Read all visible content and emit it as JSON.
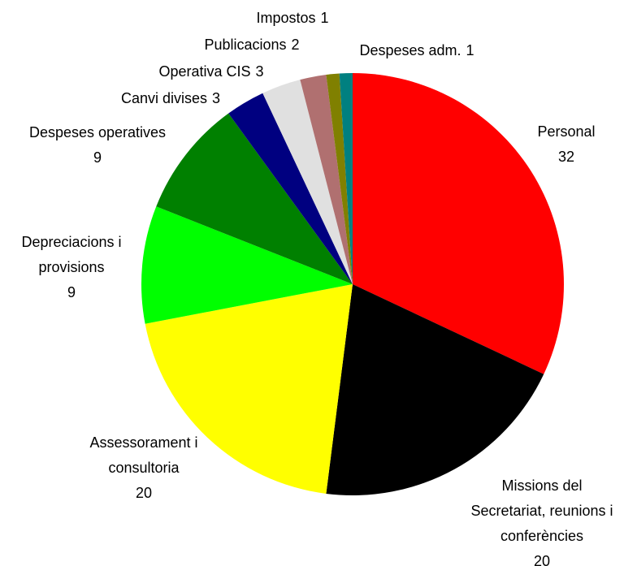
{
  "chart_data": {
    "type": "pie",
    "categories": [
      "Personal",
      "Missions del Secretariat, reunions i conferències",
      "Assessorament i consultoria",
      "Depreciacions i provisions",
      "Despeses operatives",
      "Canvi divises",
      "Operativa CIS",
      "Publicacions",
      "Impostos",
      "Despeses adm."
    ],
    "values": [
      32,
      20,
      20,
      9,
      9,
      3,
      3,
      2,
      1,
      1
    ],
    "colors": [
      "#ff0000",
      "#000000",
      "#ffff00",
      "#00ff00",
      "#008000",
      "#000080",
      "#e0e0e0",
      "#b07070",
      "#808000",
      "#008080"
    ]
  }
}
